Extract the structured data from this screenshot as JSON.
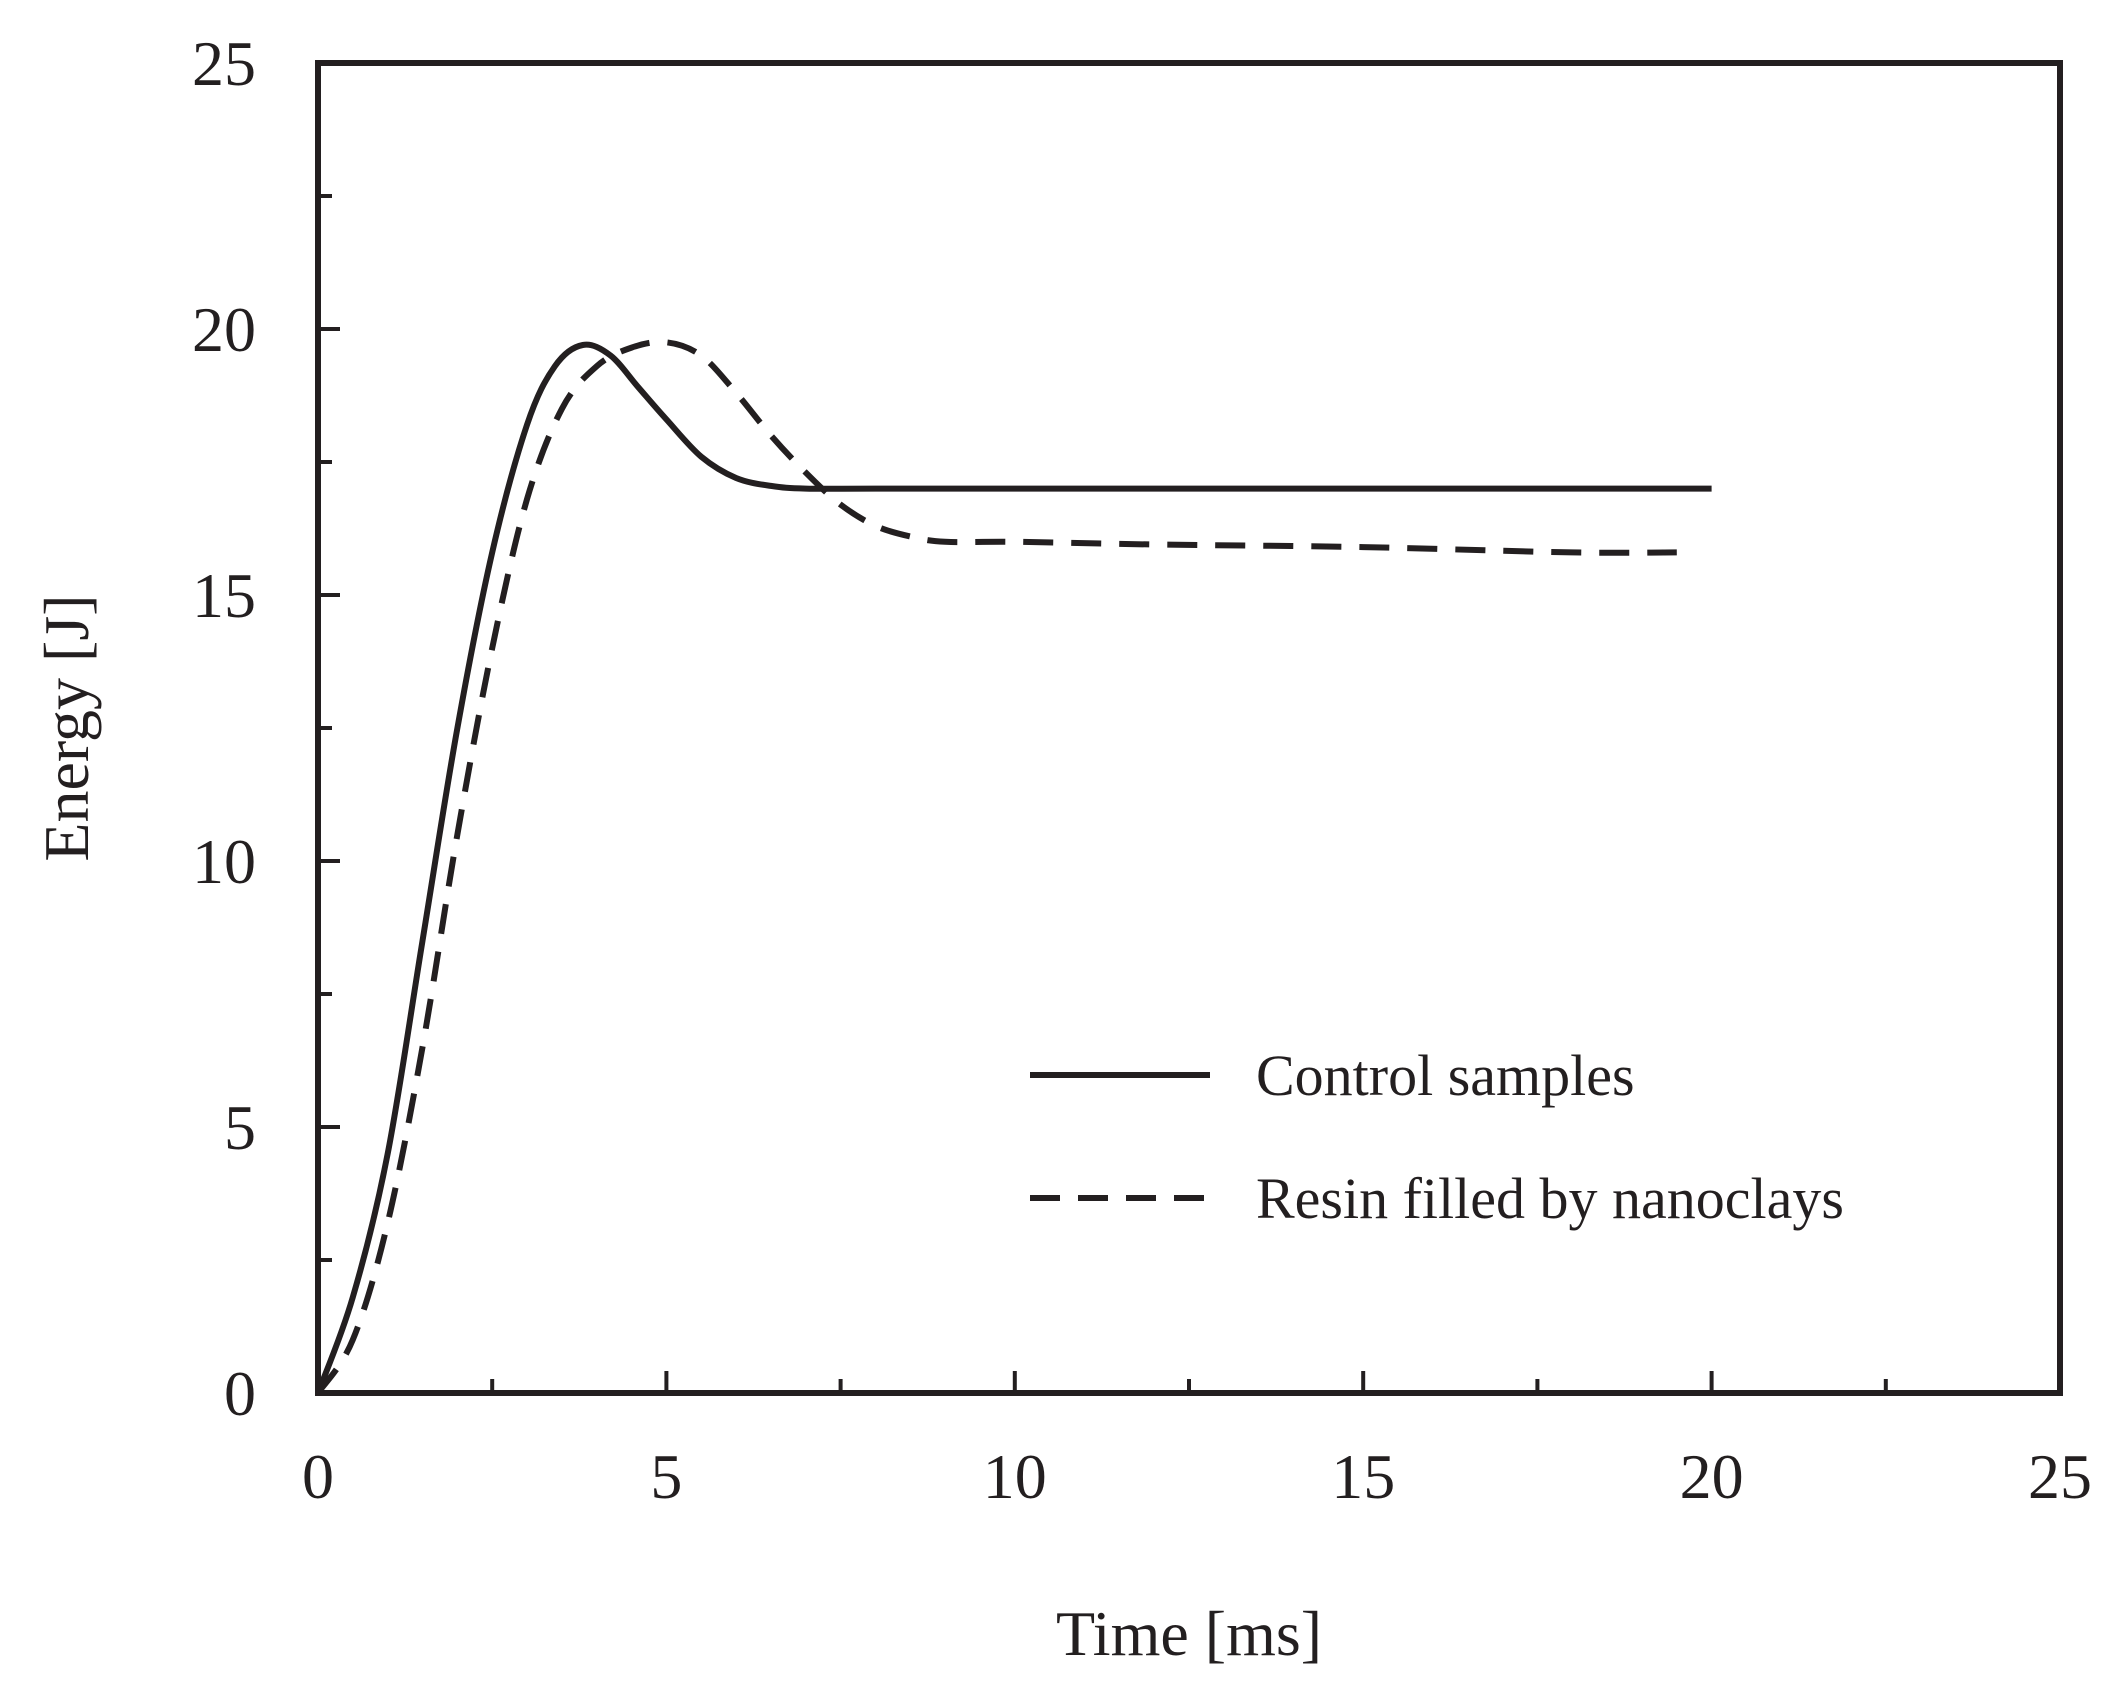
{
  "chart_data": {
    "type": "line",
    "title": "",
    "xlabel": "Time [ms]",
    "ylabel": "Energy [J]",
    "xlim": [
      0,
      25
    ],
    "ylim": [
      0,
      25
    ],
    "xticks": [
      0,
      5,
      10,
      15,
      20,
      25
    ],
    "yticks": [
      0,
      5,
      10,
      15,
      20,
      25
    ],
    "xtick_labels": [
      "0",
      "5",
      "10",
      "15",
      "20",
      "25"
    ],
    "ytick_labels": [
      "0",
      "5",
      "10",
      "15",
      "20",
      "25"
    ],
    "grid": false,
    "legend_position": "bottom-right",
    "series": [
      {
        "name": "Control samples",
        "style": "solid",
        "x": [
          0,
          0.5,
          1.0,
          1.5,
          2.0,
          2.5,
          3.0,
          3.4,
          3.8,
          4.2,
          4.6,
          5.0,
          5.5,
          6.0,
          6.5,
          7.0,
          8.0,
          10.0,
          12.0,
          15.0,
          18.0,
          20.0
        ],
        "y": [
          0,
          1.8,
          4.5,
          8.5,
          12.5,
          15.8,
          18.2,
          19.3,
          19.7,
          19.5,
          18.9,
          18.3,
          17.6,
          17.2,
          17.05,
          17.0,
          17.0,
          17.0,
          17.0,
          17.0,
          17.0,
          17.0
        ]
      },
      {
        "name": "Resin filled by nanoclays",
        "style": "dashed",
        "x": [
          0,
          0.5,
          1.0,
          1.5,
          2.0,
          2.5,
          3.0,
          3.5,
          4.0,
          4.5,
          5.0,
          5.5,
          6.0,
          6.5,
          7.0,
          7.5,
          8.0,
          8.5,
          9.0,
          10.0,
          12.0,
          15.0,
          18.0,
          19.5
        ],
        "y": [
          0,
          1.0,
          3.2,
          6.5,
          10.5,
          14.0,
          16.8,
          18.5,
          19.3,
          19.65,
          19.75,
          19.5,
          18.8,
          18.0,
          17.3,
          16.7,
          16.3,
          16.1,
          16.0,
          16.0,
          15.95,
          15.9,
          15.8,
          15.8
        ]
      }
    ]
  }
}
